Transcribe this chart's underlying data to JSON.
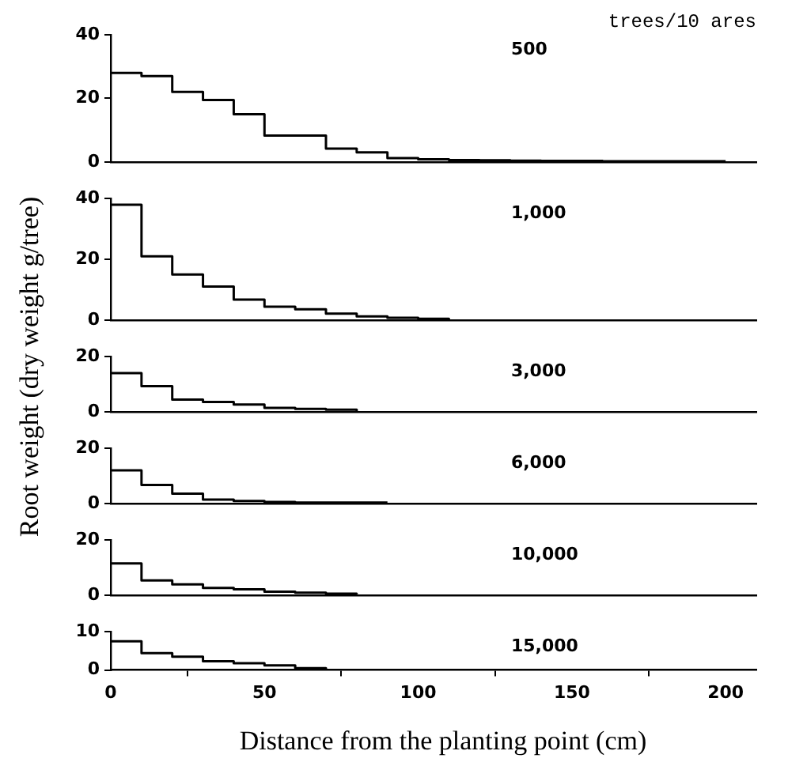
{
  "chart_data": [
    {
      "type": "step",
      "title": "500",
      "annotations": [
        "trees/10 ares"
      ],
      "ylabel": "Root weight (dry weight g/tree)",
      "color": "#000000",
      "x": [
        0,
        10,
        20,
        30,
        40,
        50,
        60,
        70,
        80,
        90,
        100,
        110,
        120,
        130,
        140,
        150,
        160,
        170,
        180,
        190,
        200
      ],
      "values": [
        28,
        27,
        22,
        19.5,
        15,
        8.3,
        8.3,
        4.2,
        3,
        1.2,
        0.8,
        0.6,
        0.5,
        0.4,
        0.3,
        0.3,
        0.2,
        0.2,
        0.2,
        0.2,
        0.2
      ],
      "xlim": [
        0,
        210
      ],
      "xticks": [
        0,
        50,
        100,
        150,
        200
      ],
      "ylim": [
        0,
        40
      ],
      "yticks": [
        0,
        20,
        40
      ],
      "tick_labels": "y"
    },
    {
      "type": "step",
      "title": "1,000",
      "color": "#000000",
      "x": [
        0,
        10,
        20,
        30,
        40,
        50,
        60,
        70,
        80,
        90,
        100,
        110
      ],
      "values": [
        38,
        21,
        15,
        11,
        6.7,
        4.4,
        3.5,
        2.1,
        1.2,
        0.7,
        0.4,
        0.2
      ],
      "xlim": [
        0,
        210
      ],
      "xticks": [
        0,
        50,
        100,
        150,
        200
      ],
      "ylim": [
        0,
        40
      ],
      "yticks": [
        0,
        20,
        40
      ],
      "tick_labels": "y"
    },
    {
      "type": "step",
      "title": "3,000",
      "color": "#000000",
      "x": [
        0,
        10,
        20,
        30,
        40,
        50,
        60,
        70,
        80
      ],
      "values": [
        14,
        9.3,
        4.4,
        3.5,
        2.6,
        1.4,
        1,
        0.7,
        0.2
      ],
      "xlim": [
        0,
        210
      ],
      "xticks": [
        0,
        50,
        100,
        150,
        200
      ],
      "ylim": [
        0,
        20
      ],
      "yticks": [
        0,
        20
      ],
      "tick_labels": "y"
    },
    {
      "type": "step",
      "title": "6,000",
      "color": "#000000",
      "x": [
        0,
        10,
        20,
        30,
        40,
        50,
        60,
        70,
        80,
        90
      ],
      "values": [
        12,
        6.7,
        3.5,
        1.4,
        0.9,
        0.5,
        0.3,
        0.3,
        0.3,
        0.3
      ],
      "xlim": [
        0,
        210
      ],
      "xticks": [
        0,
        50,
        100,
        150,
        200
      ],
      "ylim": [
        0,
        20
      ],
      "yticks": [
        0,
        20
      ],
      "tick_labels": "y"
    },
    {
      "type": "step",
      "title": "10,000",
      "color": "#000000",
      "x": [
        0,
        10,
        20,
        30,
        40,
        50,
        60,
        70,
        80
      ],
      "values": [
        11.5,
        5.3,
        3.9,
        2.6,
        2.1,
        1.2,
        0.9,
        0.5,
        0.3
      ],
      "xlim": [
        0,
        210
      ],
      "xticks": [
        0,
        50,
        100,
        150,
        200
      ],
      "ylim": [
        0,
        20
      ],
      "yticks": [
        0,
        20
      ],
      "tick_labels": "y"
    },
    {
      "type": "step",
      "title": "15,000",
      "xlabel": "Distance from the planting point (cm)",
      "color": "#000000",
      "x": [
        0,
        10,
        20,
        30,
        40,
        50,
        60,
        70
      ],
      "values": [
        7.5,
        4.4,
        3.5,
        2.3,
        1.8,
        1.2,
        0.5,
        0.2
      ],
      "xlim": [
        0,
        210
      ],
      "xticks": [
        0,
        50,
        100,
        150,
        200
      ],
      "ylim": [
        0,
        10
      ],
      "yticks": [
        0,
        10
      ]
    }
  ]
}
